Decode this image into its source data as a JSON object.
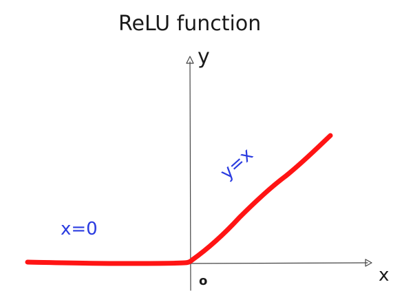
{
  "title": "ReLU function",
  "axes": {
    "x_label": "x",
    "y_label": "y",
    "origin_label": "o"
  },
  "annotations": {
    "negative_region": "x=0",
    "positive_region": "y=x"
  },
  "colors": {
    "curve": "#ff1414",
    "annotation": "#2a3be0",
    "axis": "#444444",
    "text": "#1a1a1a"
  }
}
